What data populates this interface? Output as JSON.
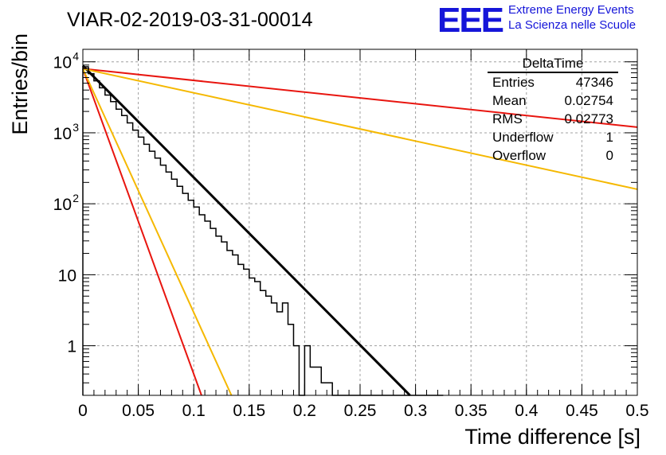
{
  "chart_data": {
    "type": "histogram",
    "title": "VIAR-02-2019-03-31-00014",
    "xlabel": "Time difference [s]",
    "ylabel": "Entries/bin",
    "xlim": [
      0,
      0.5
    ],
    "ylim": [
      0.2,
      15000
    ],
    "yscale": "log",
    "grid": true,
    "x_ticks": [
      "0",
      "0.05",
      "0.1",
      "0.15",
      "0.2",
      "0.25",
      "0.3",
      "0.35",
      "0.4",
      "0.45",
      "0.5"
    ],
    "y_ticks": [
      {
        "value": 1,
        "base": "1",
        "exp": ""
      },
      {
        "value": 10,
        "base": "10",
        "exp": ""
      },
      {
        "value": 100,
        "base": "10",
        "exp": "2"
      },
      {
        "value": 1000,
        "base": "10",
        "exp": "3"
      },
      {
        "value": 10000,
        "base": "10",
        "exp": "4"
      }
    ],
    "bin_width": 0.005,
    "histogram": {
      "name": "DeltaTime",
      "values": [
        8500,
        6800,
        5400,
        4300,
        3400,
        2750,
        2150,
        1750,
        1380,
        1090,
        870,
        690,
        550,
        440,
        350,
        280,
        222,
        176,
        140,
        112,
        90,
        70,
        57,
        45,
        35,
        29,
        22,
        19,
        14,
        12,
        9,
        8,
        6,
        5,
        4,
        3,
        4,
        2,
        1,
        0,
        1,
        0.5,
        0.5,
        0.3,
        0.3,
        0.15,
        0.15,
        0.1,
        0.1,
        0.1,
        0.1,
        0.1,
        0.1,
        0.1,
        0.1,
        0.1,
        0.1,
        0.1,
        0.1,
        0.1,
        0.1,
        0.1,
        0.1,
        0.1,
        0.1
      ]
    },
    "fits": [
      {
        "name": "fit",
        "color": "#000000",
        "x": [
          0,
          0.295
        ],
        "y": [
          8800,
          0.2
        ]
      },
      {
        "name": "red-steep",
        "color": "#e8150f",
        "x": [
          0,
          0.107
        ],
        "y": [
          8000,
          0.2
        ]
      },
      {
        "name": "orange-steep",
        "color": "#f5b800",
        "x": [
          0,
          0.134
        ],
        "y": [
          8000,
          0.2
        ]
      },
      {
        "name": "red-shallow",
        "color": "#e8150f",
        "x": [
          0,
          0.5
        ],
        "y": [
          8000,
          1200
        ]
      },
      {
        "name": "orange-shallow",
        "color": "#f5b800",
        "x": [
          0,
          0.5
        ],
        "y": [
          8000,
          160
        ]
      }
    ]
  },
  "stats_box": {
    "title": "DeltaTime",
    "rows": [
      {
        "label": "Entries",
        "value": "47346"
      },
      {
        "label": "Mean",
        "value": "0.02754"
      },
      {
        "label": "RMS",
        "value": "0.02773"
      },
      {
        "label": "Underflow",
        "value": "1"
      },
      {
        "label": "Overflow",
        "value": "0"
      }
    ]
  },
  "logo": {
    "mark": "EEE",
    "line1": "Extreme Energy Events",
    "line2": "La Scienza nelle Scuole",
    "color": "#1515d9"
  }
}
